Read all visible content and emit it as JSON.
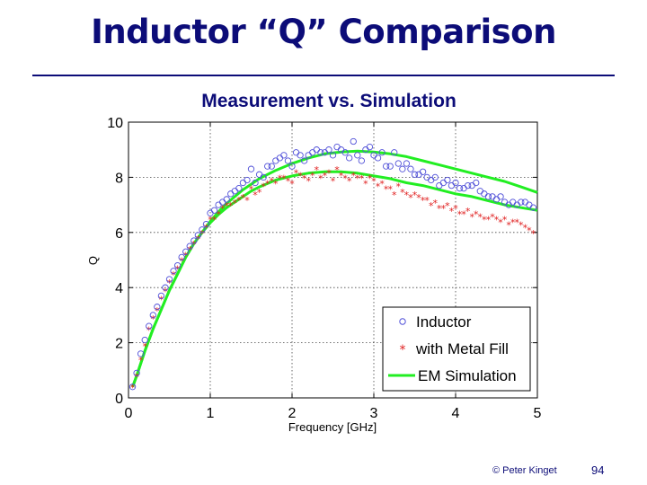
{
  "slide": {
    "title": "Inductor “Q” Comparison",
    "footer": "© Peter Kinget",
    "page_number": "94"
  },
  "colors": {
    "title": "#0c0c78",
    "inductor": "#5050d8",
    "metal_fill": "#e02020",
    "simulation": "#22ee22"
  },
  "chart_data": {
    "type": "scatter",
    "title": "Measurement vs. Simulation",
    "xlabel": "Frequency [GHz]",
    "ylabel": "Q",
    "xlim": [
      0,
      5
    ],
    "ylim": [
      0,
      10
    ],
    "xticks": [
      0,
      1,
      2,
      3,
      4,
      5
    ],
    "yticks": [
      0,
      2,
      4,
      6,
      8,
      10
    ],
    "grid": true,
    "legend_position": "bottom-right",
    "series": [
      {
        "name": "Inductor",
        "marker": "circle",
        "x": [
          0.05,
          0.1,
          0.15,
          0.2,
          0.25,
          0.3,
          0.35,
          0.4,
          0.45,
          0.5,
          0.55,
          0.6,
          0.65,
          0.7,
          0.75,
          0.8,
          0.85,
          0.9,
          0.95,
          1.0,
          1.05,
          1.1,
          1.15,
          1.2,
          1.25,
          1.3,
          1.35,
          1.4,
          1.45,
          1.5,
          1.55,
          1.6,
          1.65,
          1.7,
          1.75,
          1.8,
          1.85,
          1.9,
          1.95,
          2.0,
          2.05,
          2.1,
          2.15,
          2.2,
          2.25,
          2.3,
          2.35,
          2.4,
          2.45,
          2.5,
          2.55,
          2.6,
          2.65,
          2.7,
          2.75,
          2.8,
          2.85,
          2.9,
          2.95,
          3.0,
          3.05,
          3.1,
          3.15,
          3.2,
          3.25,
          3.3,
          3.35,
          3.4,
          3.45,
          3.5,
          3.55,
          3.6,
          3.65,
          3.7,
          3.75,
          3.8,
          3.85,
          3.9,
          3.95,
          4.0,
          4.05,
          4.1,
          4.15,
          4.2,
          4.25,
          4.3,
          4.35,
          4.4,
          4.45,
          4.5,
          4.55,
          4.6,
          4.65,
          4.7,
          4.75,
          4.8,
          4.85,
          4.9,
          4.95
        ],
        "y": [
          0.4,
          0.9,
          1.6,
          2.1,
          2.6,
          3.0,
          3.3,
          3.7,
          4.0,
          4.3,
          4.6,
          4.8,
          5.1,
          5.3,
          5.5,
          5.7,
          5.9,
          6.1,
          6.3,
          6.7,
          6.8,
          7.0,
          7.1,
          7.2,
          7.4,
          7.5,
          7.6,
          7.8,
          7.9,
          8.3,
          7.8,
          8.1,
          8.0,
          8.4,
          8.4,
          8.6,
          8.7,
          8.8,
          8.6,
          8.4,
          8.9,
          8.8,
          8.6,
          8.8,
          8.9,
          9.0,
          8.9,
          8.9,
          9.0,
          8.8,
          9.1,
          9.0,
          8.9,
          8.7,
          9.3,
          8.8,
          8.6,
          9.0,
          9.1,
          8.8,
          8.7,
          8.9,
          8.4,
          8.4,
          8.9,
          8.5,
          8.3,
          8.5,
          8.3,
          8.1,
          8.1,
          8.2,
          8.0,
          7.9,
          8.0,
          7.7,
          7.8,
          7.9,
          7.7,
          7.8,
          7.6,
          7.6,
          7.7,
          7.7,
          7.8,
          7.5,
          7.4,
          7.3,
          7.3,
          7.2,
          7.3,
          7.1,
          7.0,
          7.1,
          7.0,
          7.1,
          7.1,
          7.0,
          6.9
        ]
      },
      {
        "name": "with Metal Fill",
        "marker": "star",
        "x": [
          0.05,
          0.1,
          0.15,
          0.2,
          0.25,
          0.3,
          0.35,
          0.4,
          0.45,
          0.5,
          0.55,
          0.6,
          0.65,
          0.7,
          0.75,
          0.8,
          0.85,
          0.9,
          0.95,
          1.0,
          1.05,
          1.1,
          1.15,
          1.2,
          1.25,
          1.3,
          1.35,
          1.4,
          1.45,
          1.5,
          1.55,
          1.6,
          1.65,
          1.7,
          1.75,
          1.8,
          1.85,
          1.9,
          1.95,
          2.0,
          2.05,
          2.1,
          2.15,
          2.2,
          2.25,
          2.3,
          2.35,
          2.4,
          2.45,
          2.5,
          2.55,
          2.6,
          2.65,
          2.7,
          2.75,
          2.8,
          2.85,
          2.9,
          2.95,
          3.0,
          3.05,
          3.1,
          3.15,
          3.2,
          3.25,
          3.3,
          3.35,
          3.4,
          3.45,
          3.5,
          3.55,
          3.6,
          3.65,
          3.7,
          3.75,
          3.8,
          3.85,
          3.9,
          3.95,
          4.0,
          4.05,
          4.1,
          4.15,
          4.2,
          4.25,
          4.3,
          4.35,
          4.4,
          4.45,
          4.5,
          4.55,
          4.6,
          4.65,
          4.7,
          4.75,
          4.8,
          4.85,
          4.9,
          4.95
        ],
        "y": [
          0.4,
          0.8,
          1.4,
          1.9,
          2.5,
          2.9,
          3.2,
          3.6,
          3.9,
          4.2,
          4.5,
          4.7,
          5.0,
          5.2,
          5.4,
          5.6,
          5.8,
          6.0,
          6.2,
          6.5,
          6.5,
          6.7,
          6.9,
          7.0,
          7.0,
          7.1,
          7.2,
          7.3,
          7.2,
          7.6,
          7.4,
          7.5,
          7.7,
          7.8,
          7.9,
          7.8,
          8.0,
          8.0,
          7.9,
          7.8,
          8.2,
          8.1,
          8.0,
          7.9,
          8.1,
          8.3,
          8.0,
          8.1,
          8.2,
          7.9,
          8.3,
          8.1,
          8.0,
          7.9,
          8.1,
          8.0,
          8.0,
          7.8,
          8.0,
          7.9,
          7.7,
          7.8,
          7.6,
          7.6,
          7.4,
          7.7,
          7.5,
          7.4,
          7.3,
          7.4,
          7.3,
          7.2,
          7.2,
          7.0,
          7.1,
          6.9,
          6.9,
          7.0,
          6.8,
          6.9,
          6.7,
          6.7,
          6.8,
          6.6,
          6.7,
          6.6,
          6.5,
          6.5,
          6.6,
          6.5,
          6.4,
          6.5,
          6.3,
          6.4,
          6.4,
          6.3,
          6.2,
          6.1,
          6.0
        ]
      },
      {
        "name": "EM Simulation",
        "marker": "line",
        "x": [
          0.05,
          0.1,
          0.2,
          0.3,
          0.4,
          0.5,
          0.6,
          0.7,
          0.8,
          0.9,
          1.0,
          1.1,
          1.2,
          1.3,
          1.4,
          1.5,
          1.6,
          1.8,
          2.0,
          2.2,
          2.4,
          2.6,
          2.8,
          3.0,
          3.2,
          3.4,
          3.6,
          3.8,
          4.0,
          4.2,
          4.4,
          4.6,
          4.8,
          5.0
        ],
        "y": [
          0.4,
          0.8,
          1.7,
          2.5,
          3.2,
          3.9,
          4.5,
          5.1,
          5.6,
          6.0,
          6.4,
          6.75,
          7.05,
          7.3,
          7.55,
          7.75,
          7.95,
          8.25,
          8.5,
          8.7,
          8.85,
          8.92,
          8.95,
          8.92,
          8.85,
          8.75,
          8.6,
          8.45,
          8.3,
          8.15,
          8.0,
          7.85,
          7.65,
          7.45
        ]
      },
      {
        "name": "EM Simulation",
        "marker": "line",
        "x": [
          0.05,
          0.1,
          0.2,
          0.3,
          0.4,
          0.5,
          0.6,
          0.7,
          0.8,
          0.9,
          1.0,
          1.1,
          1.2,
          1.3,
          1.4,
          1.5,
          1.6,
          1.8,
          2.0,
          2.2,
          2.4,
          2.6,
          2.8,
          3.0,
          3.2,
          3.4,
          3.6,
          3.8,
          4.0,
          4.2,
          4.4,
          4.6,
          4.8,
          5.0
        ],
        "y": [
          0.4,
          0.8,
          1.7,
          2.5,
          3.2,
          3.9,
          4.5,
          5.1,
          5.6,
          6.0,
          6.35,
          6.65,
          6.9,
          7.1,
          7.3,
          7.5,
          7.65,
          7.9,
          8.05,
          8.15,
          8.2,
          8.2,
          8.15,
          8.05,
          7.95,
          7.8,
          7.7,
          7.55,
          7.4,
          7.3,
          7.15,
          7.0,
          6.9,
          6.8
        ]
      }
    ],
    "legend": [
      "Inductor",
      "with Metal Fill",
      "EM Simulation"
    ]
  }
}
